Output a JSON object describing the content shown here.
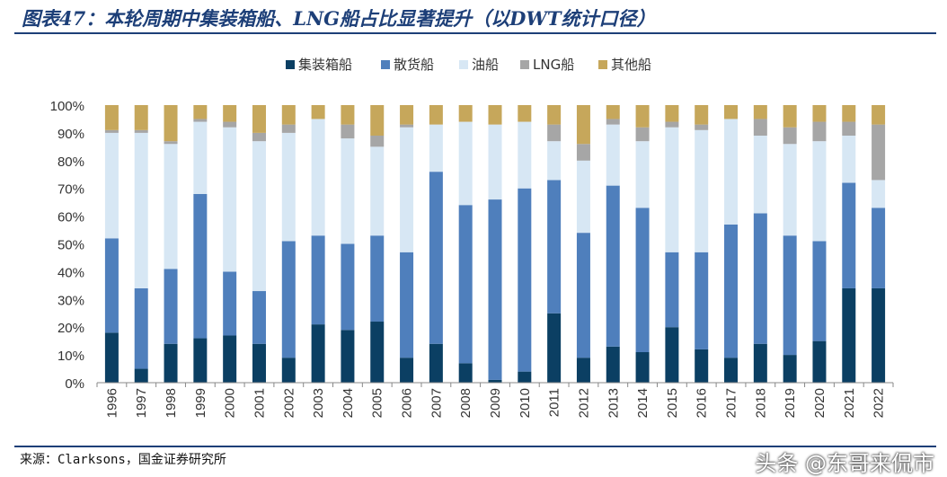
{
  "header": {
    "title": "图表47：本轮周期中集装箱船、LNG船占比显著提升（以DWT统计口径）"
  },
  "footer": {
    "source": "来源：Clarksons，国金证券研究所",
    "watermark": "头条 @东哥来侃市"
  },
  "chart_data": {
    "type": "bar",
    "stacked": true,
    "categories": [
      "1996",
      "1997",
      "1998",
      "1999",
      "2000",
      "2001",
      "2002",
      "2003",
      "2004",
      "2005",
      "2006",
      "2007",
      "2008",
      "2009",
      "2010",
      "2011",
      "2012",
      "2013",
      "2014",
      "2015",
      "2016",
      "2017",
      "2018",
      "2019",
      "2020",
      "2021",
      "2022"
    ],
    "series": [
      {
        "name": "集装箱船",
        "color": "#0b3f63",
        "values": [
          18,
          5,
          14,
          16,
          17,
          14,
          9,
          21,
          19,
          22,
          9,
          14,
          7,
          1,
          4,
          25,
          9,
          13,
          11,
          20,
          12,
          9,
          14,
          10,
          15,
          34,
          34
        ]
      },
      {
        "name": "散货船",
        "color": "#4f7fbc",
        "values": [
          34,
          29,
          27,
          52,
          23,
          19,
          42,
          32,
          31,
          31,
          38,
          62,
          57,
          65,
          66,
          48,
          45,
          58,
          52,
          27,
          35,
          48,
          47,
          43,
          36,
          38,
          29
        ]
      },
      {
        "name": "油船",
        "color": "#d7e7f4",
        "values": [
          38,
          56,
          45,
          26,
          52,
          54,
          39,
          42,
          38,
          32,
          45,
          17,
          30,
          27,
          24,
          14,
          26,
          22,
          24,
          45,
          44,
          38,
          28,
          33,
          36,
          17,
          10
        ]
      },
      {
        "name": "LNG船",
        "color": "#a6a6a6",
        "values": [
          1,
          1,
          1,
          1,
          2,
          3,
          3,
          0,
          5,
          4,
          1,
          0,
          0,
          0,
          0,
          6,
          6,
          2,
          5,
          2,
          2,
          0,
          6,
          6,
          7,
          5,
          20
        ]
      },
      {
        "name": "其他船",
        "color": "#c6a75b",
        "values": [
          9,
          9,
          13,
          5,
          6,
          10,
          7,
          5,
          7,
          11,
          7,
          7,
          6,
          7,
          6,
          7,
          14,
          5,
          8,
          6,
          7,
          5,
          5,
          8,
          6,
          6,
          7
        ]
      }
    ],
    "ylim": [
      0,
      100
    ],
    "yticks": [
      "0%",
      "10%",
      "20%",
      "30%",
      "40%",
      "50%",
      "60%",
      "70%",
      "80%",
      "90%",
      "100%"
    ],
    "grid": false,
    "legend": "top-center"
  }
}
